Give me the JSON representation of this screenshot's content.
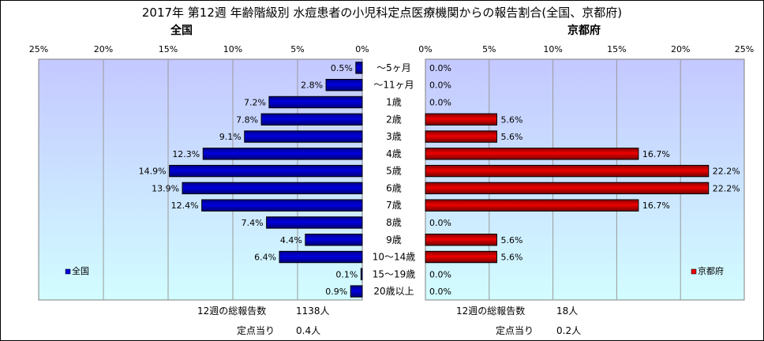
{
  "title": "2017年 第12週 年齢階級別 水痘患者の小児科定点医療機関からの報告割合(全国、京都府)",
  "colors": {
    "national": "#0000dd",
    "kyoto": "#ee0000",
    "plot_bg_top": "#c4c8ff",
    "plot_bg_bottom": "#d2fdff"
  },
  "chart_data": [
    {
      "type": "bar",
      "orientation": "horizontal",
      "title": "全国",
      "categories": [
        "～5ヶ月",
        "～11ヶ月",
        "1歳",
        "2歳",
        "3歳",
        "4歳",
        "5歳",
        "6歳",
        "7歳",
        "8歳",
        "9歳",
        "10～14歳",
        "15～19歳",
        "20歳以上"
      ],
      "series": [
        {
          "name": "全国",
          "values": [
            0.5,
            2.8,
            7.2,
            7.8,
            9.1,
            12.3,
            14.9,
            13.9,
            12.4,
            7.4,
            4.4,
            6.4,
            0.1,
            0.9
          ],
          "labels": [
            "0.5%",
            "2.8%",
            "7.2%",
            "7.8%",
            "9.1%",
            "12.3%",
            "14.9%",
            "13.9%",
            "12.4%",
            "7.4%",
            "4.4%",
            "6.4%",
            "0.1%",
            "0.9%"
          ]
        }
      ],
      "xlim": [
        25,
        0
      ],
      "xticks": [
        "25%",
        "20%",
        "15%",
        "10%",
        "5%",
        "0%"
      ],
      "legend": "bottom-left",
      "grid": true,
      "footer": {
        "total_label": "12週の総報告数",
        "total_value": "1138人",
        "per_label": "定点当り",
        "per_value": "0.4人"
      }
    },
    {
      "type": "bar",
      "orientation": "horizontal",
      "title": "京都府",
      "categories": [
        "～5ヶ月",
        "～11ヶ月",
        "1歳",
        "2歳",
        "3歳",
        "4歳",
        "5歳",
        "6歳",
        "7歳",
        "8歳",
        "9歳",
        "10～14歳",
        "15～19歳",
        "20歳以上"
      ],
      "series": [
        {
          "name": "京都府",
          "values": [
            0.0,
            0.0,
            0.0,
            5.6,
            5.6,
            16.7,
            22.2,
            22.2,
            16.7,
            0.0,
            5.6,
            5.6,
            0.0,
            0.0
          ],
          "labels": [
            "0.0%",
            "0.0%",
            "0.0%",
            "5.6%",
            "5.6%",
            "16.7%",
            "22.2%",
            "22.2%",
            "16.7%",
            "0.0%",
            "5.6%",
            "5.6%",
            "0.0%",
            "0.0%"
          ]
        }
      ],
      "xlim": [
        0,
        25
      ],
      "xticks": [
        "0%",
        "5%",
        "10%",
        "15%",
        "20%",
        "25%"
      ],
      "legend": "bottom-right",
      "grid": true,
      "footer": {
        "total_label": "12週の総報告数",
        "total_value": "18人",
        "per_label": "定点当り",
        "per_value": "0.2人"
      }
    }
  ]
}
